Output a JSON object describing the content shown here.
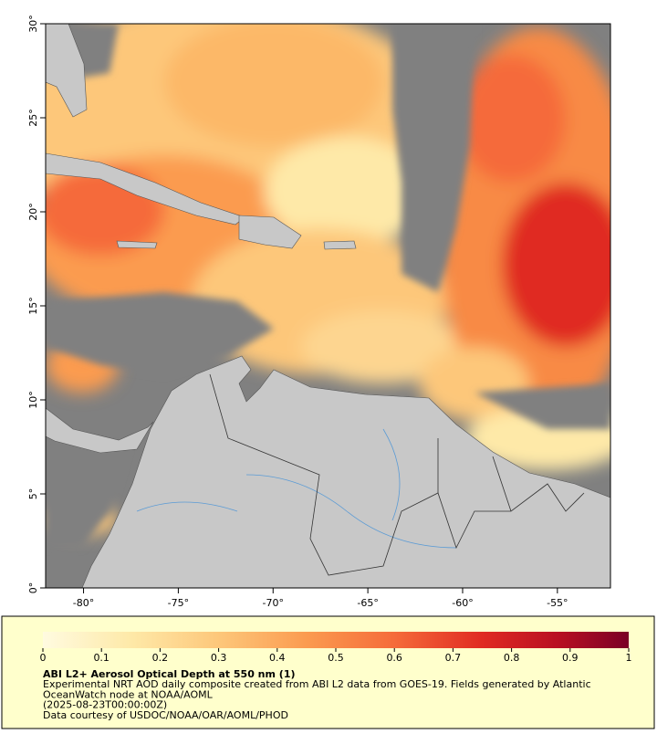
{
  "map": {
    "xlim": [
      -82,
      -52.2
    ],
    "ylim": [
      0,
      30
    ],
    "xticks": [
      {
        "value": -80,
        "label": "-80°"
      },
      {
        "value": -75,
        "label": "-75°"
      },
      {
        "value": -70,
        "label": "-70°"
      },
      {
        "value": -65,
        "label": "-65°"
      },
      {
        "value": -60,
        "label": "-60°"
      },
      {
        "value": -55,
        "label": "-55°"
      }
    ],
    "yticks": [
      {
        "value": 0,
        "label": "0°"
      },
      {
        "value": 5,
        "label": "5°"
      },
      {
        "value": 10,
        "label": "10°"
      },
      {
        "value": 15,
        "label": "15°"
      },
      {
        "value": 20,
        "label": "20°"
      },
      {
        "value": 25,
        "label": "25°"
      },
      {
        "value": 30,
        "label": "30°"
      }
    ]
  },
  "colorbar": {
    "lim": [
      0,
      1
    ],
    "ticks": [
      0,
      0.1,
      0.2,
      0.3,
      0.4,
      0.5,
      0.6,
      0.7,
      0.8,
      0.9,
      1
    ]
  },
  "caption": {
    "title": "ABI L2+ Aerosol Optical Depth at 550 nm (1)",
    "lines": [
      "Experimental NRT AOD daily composite created from ABI L2 data from GOES-19. Fields generated by Atlantic",
      "OceanWatch node at NOAA/AOML",
      "(2025-08-23T00:00:00Z)",
      "Data courtesy of USDOC/NOAA/OAR/AOML/PHOD"
    ]
  }
}
